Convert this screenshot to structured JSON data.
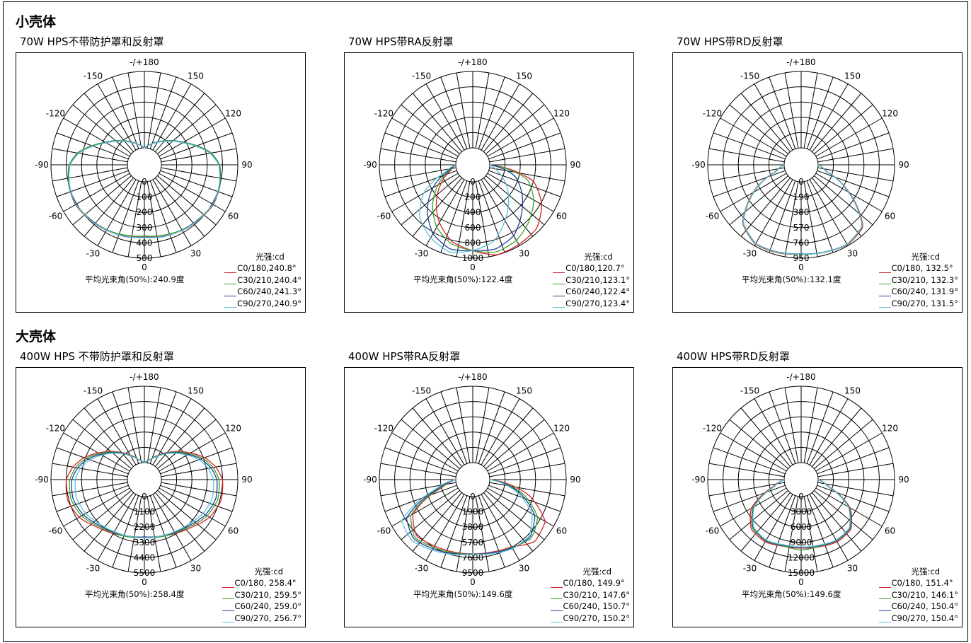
{
  "sections": [
    {
      "title": "小壳体",
      "charts": [
        {
          "title": "70W HPS不带防护罩和反射罩",
          "avg": "平均光束角(50%):240.9度",
          "legend": [
            "C0/180,240.8°",
            "C30/210,240.4°",
            "C60/240,241.3°",
            "C90/270,240.9°"
          ]
        },
        {
          "title": "70W HPS带RA反射罩",
          "avg": "平均光束角(50%):122.4度",
          "legend": [
            "C0/180,120.7°",
            "C30/210,123.1°",
            "C60/240,122.4°",
            "C90/270,123.4°"
          ]
        },
        {
          "title": "70W HPS带RD反射罩",
          "avg": "平均光束角(50%):132.1度",
          "legend": [
            "C0/180, 132.5°",
            "C30/210, 132.3°",
            "C60/240, 131.9°",
            "C90/270, 131.5°"
          ]
        }
      ]
    },
    {
      "title": "大壳体",
      "charts": [
        {
          "title": "400W HPS 不带防护罩和反射罩",
          "avg": "平均光束角(50%):258.4度",
          "legend": [
            "C0/180, 258.4°",
            "C30/210, 259.5°",
            "C60/240, 259.0°",
            "C90/270, 256.7°"
          ]
        },
        {
          "title": "400W HPS带RA反射罩",
          "avg": "平均光束角(50%):149.6度",
          "legend": [
            "C0/180, 149.9°",
            "C30/210, 147.6°",
            "C60/240, 150.7°",
            "C90/270, 150.2°"
          ]
        },
        {
          "title": "400W HPS带RD反射罩",
          "avg": "平均光束角(50%):149.6度",
          "legend": [
            "C0/180, 151.4°",
            "C30/210, 146.1°",
            "C60/240, 150.4°",
            "C90/270, 150.4°"
          ]
        }
      ]
    }
  ],
  "legend_unit": "光强:cd",
  "series_colors": [
    "#d81e2a",
    "#3fa32c",
    "#1f3f9a",
    "#5cc1d6"
  ],
  "chart_data": [
    {
      "type": "polar",
      "title": "70W HPS不带防护罩和反射罩",
      "angle_labels": [
        "-/+180",
        "150",
        "120",
        "90",
        "60",
        "30",
        "0",
        "-30",
        "-60",
        "-90",
        "-120",
        "-150"
      ],
      "radial_ticks": [
        0,
        100,
        200,
        300,
        400,
        500
      ],
      "rmax": 500,
      "series": [
        {
          "name": "C0/180",
          "angles": [
            0,
            15,
            30,
            45,
            60,
            75,
            90,
            100,
            110,
            120,
            135,
            150,
            165,
            180
          ],
          "values": [
            360,
            370,
            385,
            395,
            410,
            400,
            380,
            330,
            250,
            180,
            110,
            60,
            25,
            0
          ]
        },
        {
          "name": "C30/210",
          "angles": [
            0,
            15,
            30,
            45,
            60,
            75,
            90,
            100,
            110,
            120,
            135,
            150,
            165,
            180
          ],
          "values": [
            355,
            365,
            380,
            390,
            405,
            402,
            382,
            335,
            255,
            182,
            112,
            62,
            26,
            0
          ]
        },
        {
          "name": "C60/240",
          "angles": [
            0,
            15,
            30,
            45,
            60,
            75,
            90,
            100,
            110,
            120,
            135,
            150,
            165,
            180
          ],
          "values": [
            362,
            375,
            382,
            392,
            408,
            398,
            378,
            328,
            248,
            178,
            108,
            58,
            24,
            0
          ]
        },
        {
          "name": "C90/270",
          "angles": [
            0,
            15,
            30,
            45,
            60,
            75,
            90,
            100,
            110,
            120,
            135,
            150,
            165,
            180
          ],
          "values": [
            365,
            372,
            384,
            394,
            406,
            396,
            376,
            326,
            246,
            176,
            106,
            57,
            24,
            0
          ]
        }
      ]
    },
    {
      "type": "polar",
      "title": "70W HPS带RA反射罩",
      "angle_labels": [
        "-/+180",
        "150",
        "120",
        "90",
        "60",
        "30",
        "0",
        "-30",
        "-60",
        "-90",
        "-120",
        "-150"
      ],
      "radial_ticks": [
        0,
        200,
        400,
        600,
        800,
        1000
      ],
      "rmax": 1000,
      "series": [
        {
          "name": "C0/180",
          "angles": [
            -90,
            -75,
            -60,
            -45,
            -30,
            -15,
            0,
            15,
            30,
            45,
            60,
            75,
            90
          ],
          "values": [
            0,
            80,
            250,
            450,
            650,
            820,
            900,
            1000,
            980,
            960,
            820,
            600,
            0
          ]
        },
        {
          "name": "C30/210",
          "angles": [
            -90,
            -75,
            -60,
            -45,
            -30,
            -15,
            0,
            15,
            30,
            45,
            60,
            75,
            90
          ],
          "values": [
            0,
            100,
            300,
            520,
            720,
            850,
            900,
            960,
            920,
            820,
            700,
            520,
            0
          ]
        },
        {
          "name": "C60/240",
          "angles": [
            -90,
            -75,
            -60,
            -45,
            -30,
            -15,
            0,
            15,
            30,
            45,
            60,
            75,
            90
          ],
          "values": [
            0,
            120,
            380,
            620,
            820,
            920,
            900,
            920,
            850,
            680,
            520,
            350,
            0
          ]
        },
        {
          "name": "C90/270",
          "angles": [
            -90,
            -75,
            -60,
            -45,
            -30,
            -15,
            0,
            15,
            30,
            45,
            60,
            75,
            90
          ],
          "values": [
            0,
            150,
            520,
            760,
            880,
            960,
            900,
            820,
            620,
            440,
            280,
            120,
            0
          ]
        }
      ]
    },
    {
      "type": "polar",
      "title": "70W HPS带RD反射罩",
      "angle_labels": [
        "-/+180",
        "150",
        "120",
        "90",
        "60",
        "30",
        "0",
        "-30",
        "-60",
        "-90",
        "-120",
        "-150"
      ],
      "radial_ticks": [
        0,
        190,
        380,
        570,
        760,
        950
      ],
      "rmax": 950,
      "series": [
        {
          "name": "C0/180",
          "angles": [
            -90,
            -75,
            -60,
            -45,
            -30,
            -15,
            0,
            15,
            30,
            45,
            60,
            75,
            90
          ],
          "values": [
            0,
            120,
            480,
            820,
            930,
            920,
            900,
            910,
            940,
            880,
            480,
            120,
            0
          ]
        },
        {
          "name": "C30/210",
          "angles": [
            -90,
            -75,
            -60,
            -45,
            -30,
            -15,
            0,
            15,
            30,
            45,
            60,
            75,
            90
          ],
          "values": [
            0,
            115,
            470,
            815,
            925,
            915,
            900,
            915,
            935,
            870,
            470,
            115,
            0
          ]
        },
        {
          "name": "C60/240",
          "angles": [
            -90,
            -75,
            -60,
            -45,
            -30,
            -15,
            0,
            15,
            30,
            45,
            60,
            75,
            90
          ],
          "values": [
            0,
            110,
            465,
            810,
            920,
            910,
            895,
            910,
            930,
            865,
            465,
            110,
            0
          ]
        },
        {
          "name": "C90/270",
          "angles": [
            -90,
            -75,
            -60,
            -45,
            -30,
            -15,
            0,
            15,
            30,
            45,
            60,
            75,
            90
          ],
          "values": [
            0,
            112,
            468,
            812,
            922,
            912,
            898,
            912,
            932,
            868,
            468,
            112,
            0
          ]
        }
      ]
    },
    {
      "type": "polar",
      "title": "400W HPS 不带防护罩和反射罩",
      "angle_labels": [
        "-/+180",
        "150",
        "120",
        "90",
        "60",
        "30",
        "0",
        "-30",
        "-60",
        "-90",
        "-120",
        "-150"
      ],
      "radial_ticks": [
        0,
        1100,
        2200,
        3300,
        4400,
        5500
      ],
      "rmax": 5500,
      "series": [
        {
          "name": "C0/180",
          "angles": [
            0,
            15,
            30,
            45,
            60,
            75,
            90,
            100,
            110,
            120,
            135,
            150,
            165,
            180
          ],
          "values": [
            2900,
            3000,
            3250,
            3600,
            4200,
            4500,
            4400,
            4000,
            3400,
            2600,
            1600,
            800,
            250,
            0
          ]
        },
        {
          "name": "C30/210",
          "angles": [
            0,
            15,
            30,
            45,
            60,
            75,
            90,
            100,
            110,
            120,
            135,
            150,
            165,
            180
          ],
          "values": [
            2950,
            3050,
            3200,
            3500,
            4000,
            4250,
            4150,
            3800,
            3250,
            2500,
            1550,
            780,
            240,
            0
          ]
        },
        {
          "name": "C60/240",
          "angles": [
            0,
            15,
            30,
            45,
            60,
            75,
            90,
            100,
            110,
            120,
            135,
            150,
            165,
            180
          ],
          "values": [
            2900,
            3000,
            3150,
            3400,
            3850,
            4100,
            4000,
            3650,
            3100,
            2400,
            1500,
            750,
            230,
            0
          ]
        },
        {
          "name": "C90/270",
          "angles": [
            0,
            15,
            30,
            45,
            60,
            75,
            90,
            100,
            110,
            120,
            135,
            150,
            165,
            180
          ],
          "values": [
            2950,
            3000,
            3100,
            3300,
            3650,
            3850,
            3750,
            3450,
            2950,
            2300,
            1450,
            720,
            220,
            0
          ]
        }
      ]
    },
    {
      "type": "polar",
      "title": "400W HPS带RA反射罩",
      "angle_labels": [
        "-/+180",
        "150",
        "120",
        "90",
        "60",
        "30",
        "0",
        "-30",
        "-60",
        "-90",
        "-120",
        "-150"
      ],
      "radial_ticks": [
        0,
        1900,
        3800,
        5700,
        7600,
        9500
      ],
      "rmax": 9500,
      "series": [
        {
          "name": "C0/180",
          "angles": [
            -90,
            -75,
            -60,
            -45,
            -30,
            -15,
            0,
            15,
            30,
            45,
            60,
            75,
            90
          ],
          "values": [
            0,
            1900,
            6500,
            7800,
            7400,
            7200,
            7100,
            7200,
            7500,
            8800,
            8300,
            5000,
            0
          ]
        },
        {
          "name": "C30/210",
          "angles": [
            -90,
            -75,
            -60,
            -45,
            -30,
            -15,
            0,
            15,
            30,
            45,
            60,
            75,
            90
          ],
          "values": [
            0,
            2100,
            6800,
            8100,
            7600,
            7300,
            7100,
            7300,
            7600,
            8200,
            7200,
            4200,
            0
          ]
        },
        {
          "name": "C60/240",
          "angles": [
            -90,
            -75,
            -60,
            -45,
            -30,
            -15,
            0,
            15,
            30,
            45,
            60,
            75,
            90
          ],
          "values": [
            0,
            2400,
            7400,
            8300,
            7800,
            7400,
            7100,
            7300,
            7700,
            8000,
            6800,
            3800,
            0
          ]
        },
        {
          "name": "C90/270",
          "angles": [
            -90,
            -75,
            -60,
            -45,
            -30,
            -15,
            0,
            15,
            30,
            45,
            60,
            75,
            90
          ],
          "values": [
            0,
            2800,
            8100,
            8600,
            8000,
            7500,
            7100,
            7400,
            7800,
            7800,
            6400,
            3400,
            0
          ]
        }
      ]
    },
    {
      "type": "polar",
      "title": "400W HPS带RD反射罩",
      "angle_labels": [
        "-/+180",
        "150",
        "120",
        "90",
        "60",
        "30",
        "0",
        "-30",
        "-60",
        "-90",
        "-120",
        "-150"
      ],
      "radial_ticks": [
        0,
        3000,
        6000,
        9000,
        12000,
        15000
      ],
      "rmax": 15000,
      "series": [
        {
          "name": "C0/180",
          "angles": [
            -90,
            -75,
            -60,
            -45,
            -30,
            -15,
            0,
            15,
            30,
            45,
            60,
            75,
            90
          ],
          "values": [
            0,
            2500,
            8000,
            10500,
            10800,
            10200,
            10100,
            10300,
            10800,
            10500,
            7800,
            2400,
            0
          ]
        },
        {
          "name": "C30/210",
          "angles": [
            -90,
            -75,
            -60,
            -45,
            -30,
            -15,
            0,
            15,
            30,
            45,
            60,
            75,
            90
          ],
          "values": [
            0,
            2300,
            7600,
            10200,
            10600,
            10100,
            10500,
            10200,
            10600,
            10300,
            7600,
            2300,
            0
          ]
        },
        {
          "name": "C60/240",
          "angles": [
            -90,
            -75,
            -60,
            -45,
            -30,
            -15,
            0,
            15,
            30,
            45,
            60,
            75,
            90
          ],
          "values": [
            0,
            2200,
            7400,
            10000,
            10500,
            10000,
            10000,
            10100,
            10500,
            10200,
            7500,
            2200,
            0
          ]
        },
        {
          "name": "C90/270",
          "angles": [
            -90,
            -75,
            -60,
            -45,
            -30,
            -15,
            0,
            15,
            30,
            45,
            60,
            75,
            90
          ],
          "values": [
            0,
            2200,
            7300,
            9900,
            10400,
            9900,
            9900,
            10000,
            10400,
            10100,
            7400,
            2200,
            0
          ]
        }
      ]
    }
  ]
}
